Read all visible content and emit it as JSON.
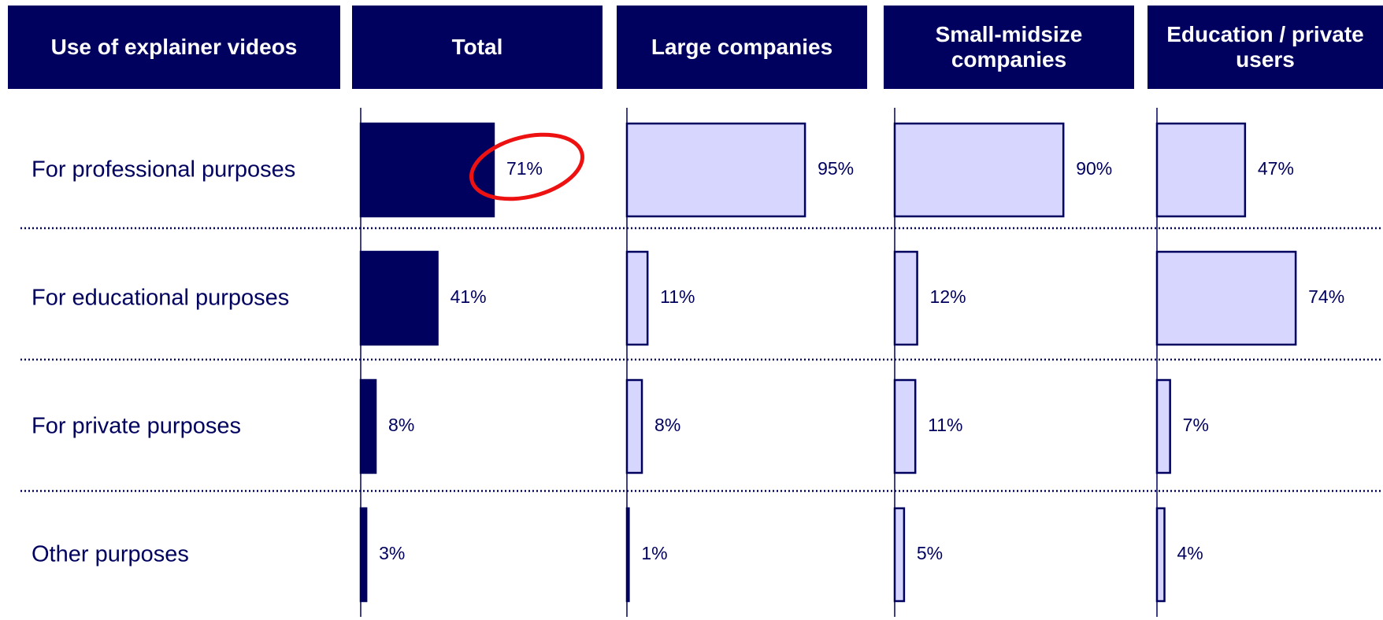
{
  "chart_data": {
    "type": "bar",
    "category_header": "Use of explainer videos",
    "categories": [
      "For professional purposes",
      "For educational purposes",
      "For private purposes",
      "Other purposes"
    ],
    "series": [
      {
        "name": "Total",
        "color": "#00005f",
        "values": [
          71,
          41,
          8,
          3
        ],
        "value_labels": [
          "71%",
          "41%",
          "8%",
          "3%"
        ]
      },
      {
        "name": "Large companies",
        "color": "#d6d6ff",
        "values": [
          95,
          11,
          8,
          1
        ],
        "value_labels": [
          "95%",
          "11%",
          "8%",
          "1%"
        ]
      },
      {
        "name": "Small-midsize companies",
        "color": "#d6d6ff",
        "values": [
          90,
          12,
          11,
          5
        ],
        "value_labels": [
          "90%",
          "12%",
          "11%",
          "5%"
        ]
      },
      {
        "name": "Education / private users",
        "color": "#d6d6ff",
        "values": [
          47,
          74,
          7,
          4
        ],
        "value_labels": [
          "47%",
          "74%",
          "7%",
          "4%"
        ]
      }
    ]
  }
}
